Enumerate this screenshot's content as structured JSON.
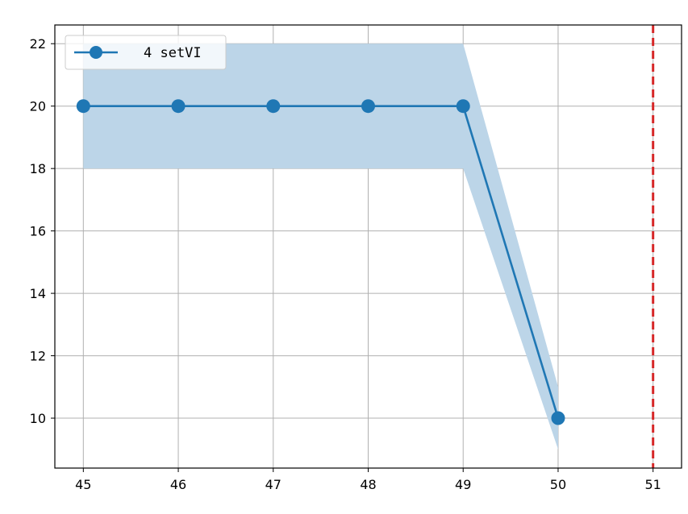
{
  "chart_data": {
    "type": "line",
    "x": [
      45,
      46,
      47,
      48,
      49,
      50
    ],
    "series": [
      {
        "name": "4 setVI",
        "values": [
          20,
          20,
          20,
          20,
          20,
          10
        ],
        "band_lower": [
          18,
          18,
          18,
          18,
          18,
          9
        ],
        "band_upper": [
          22,
          22,
          22,
          22,
          22,
          11
        ],
        "color": "#1f77b4",
        "band_color": "#bcd5e8",
        "marker": "circle"
      }
    ],
    "xlim": [
      44.7,
      51.3
    ],
    "ylim": [
      8.4,
      22.6
    ],
    "xticks": [
      45,
      46,
      47,
      48,
      49,
      50,
      51
    ],
    "yticks": [
      10,
      12,
      14,
      16,
      18,
      20,
      22
    ],
    "vline": {
      "x": 51,
      "color": "#d62728",
      "style": "dashed"
    },
    "grid": true,
    "legend_position": "top-left",
    "title": "",
    "xlabel": "",
    "ylabel": ""
  }
}
